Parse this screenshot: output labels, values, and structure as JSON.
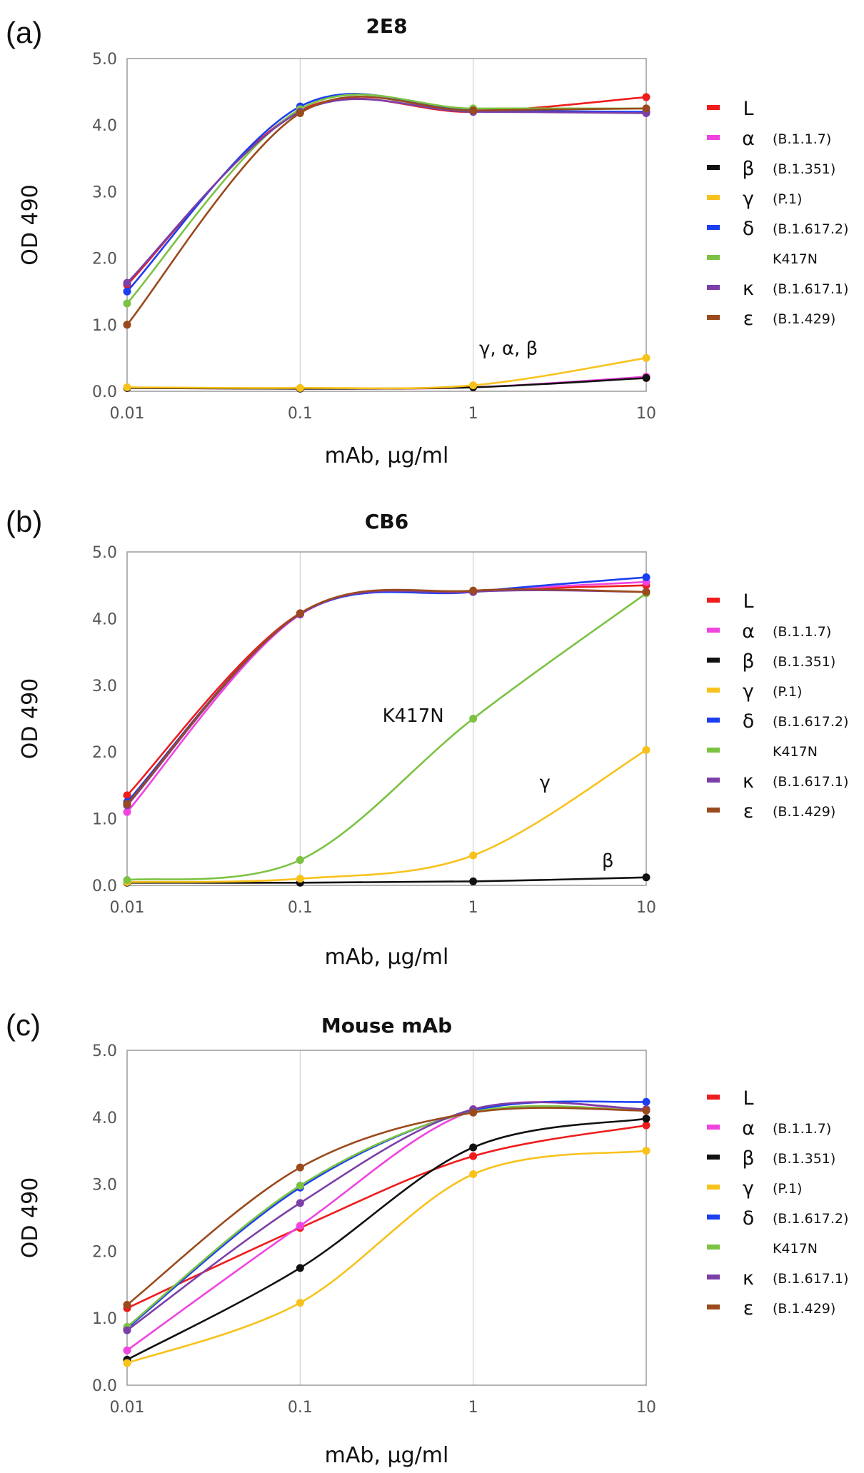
{
  "figure": {
    "charts": [
      {
        "panel_label": "(a)",
        "title": "2E8",
        "xlabel": "mAb, µg/ml",
        "ylabel": "OD 490",
        "annotations": [
          "γ, α, β"
        ]
      },
      {
        "panel_label": "(b)",
        "title": "CB6",
        "xlabel": "mAb, µg/ml",
        "ylabel": "OD 490",
        "annotations": [
          "K417N",
          "γ",
          "β"
        ]
      },
      {
        "panel_label": "(c)",
        "title": "Mouse mAb",
        "xlabel": "mAb, µg/ml",
        "ylabel": "OD 490",
        "annotations": []
      }
    ]
  },
  "chart_data": [
    {
      "type": "line",
      "title": "2E8",
      "xlabel": "mAb, µg/ml",
      "ylabel": "OD 490",
      "xscale": "log",
      "x": [
        0.01,
        0.1,
        1,
        10
      ],
      "xticks": [
        "0.01",
        "0.1",
        "1",
        "10"
      ],
      "yticks": [
        "0.0",
        "1.0",
        "2.0",
        "3.0",
        "4.0",
        "5.0"
      ],
      "ylim": [
        0,
        5
      ],
      "grid": "vertical",
      "legend_position": "right",
      "series": [
        {
          "name": "L",
          "strain": "",
          "color": "#ee1c1c",
          "values": [
            1.6,
            4.22,
            4.2,
            4.42
          ]
        },
        {
          "name": "α",
          "strain": "(B.1.1.7)",
          "color": "#f044e0",
          "values": [
            0.05,
            0.04,
            0.06,
            0.22
          ]
        },
        {
          "name": "β",
          "strain": "(B.1.351)",
          "color": "#111111",
          "values": [
            0.05,
            0.04,
            0.06,
            0.2
          ]
        },
        {
          "name": "γ",
          "strain": "(P.1)",
          "color": "#f8c21c",
          "values": [
            0.06,
            0.05,
            0.09,
            0.5
          ]
        },
        {
          "name": "δ",
          "strain": "(B.1.617.2)",
          "color": "#1c3ef0",
          "values": [
            1.5,
            4.28,
            4.22,
            4.2
          ]
        },
        {
          "name": "",
          "strain": "K417N",
          "color": "#7cc243",
          "values": [
            1.32,
            4.24,
            4.25,
            4.25
          ]
        },
        {
          "name": "κ",
          "strain": "(B.1.617.1)",
          "color": "#7b3fa8",
          "values": [
            1.63,
            4.2,
            4.2,
            4.18
          ]
        },
        {
          "name": "ε",
          "strain": "(B.1.429)",
          "color": "#9a4a1c",
          "values": [
            1.0,
            4.18,
            4.22,
            4.25
          ]
        }
      ],
      "annotations": [
        {
          "text": "γ, α, β",
          "x": 1.6,
          "y": 0.55
        }
      ]
    },
    {
      "type": "line",
      "title": "CB6",
      "xlabel": "mAb, µg/ml",
      "ylabel": "OD 490",
      "xscale": "log",
      "x": [
        0.01,
        0.1,
        1,
        10
      ],
      "xticks": [
        "0.01",
        "0.1",
        "1",
        "10"
      ],
      "yticks": [
        "0.0",
        "1.0",
        "2.0",
        "3.0",
        "4.0",
        "5.0"
      ],
      "ylim": [
        0,
        5
      ],
      "grid": "vertical",
      "legend_position": "right",
      "series": [
        {
          "name": "L",
          "strain": "",
          "color": "#ee1c1c",
          "values": [
            1.35,
            4.08,
            4.4,
            4.5
          ]
        },
        {
          "name": "α",
          "strain": "(B.1.1.7)",
          "color": "#f044e0",
          "values": [
            1.1,
            4.06,
            4.4,
            4.55
          ]
        },
        {
          "name": "β",
          "strain": "(B.1.351)",
          "color": "#111111",
          "values": [
            0.04,
            0.04,
            0.06,
            0.12
          ]
        },
        {
          "name": "γ",
          "strain": "(P.1)",
          "color": "#f8c21c",
          "values": [
            0.05,
            0.1,
            0.45,
            2.03
          ]
        },
        {
          "name": "δ",
          "strain": "(B.1.617.2)",
          "color": "#1c3ef0",
          "values": [
            1.25,
            4.07,
            4.4,
            4.62
          ]
        },
        {
          "name": "",
          "strain": "K417N",
          "color": "#7cc243",
          "values": [
            0.08,
            0.38,
            2.5,
            4.38
          ]
        },
        {
          "name": "κ",
          "strain": "(B.1.617.1)",
          "color": "#7b3fa8",
          "values": [
            1.2,
            4.07,
            4.4,
            4.4
          ]
        },
        {
          "name": "ε",
          "strain": "(B.1.429)",
          "color": "#9a4a1c",
          "values": [
            1.22,
            4.08,
            4.42,
            4.4
          ]
        }
      ],
      "annotations": [
        {
          "text": "K417N",
          "x": 0.45,
          "y": 2.45
        },
        {
          "text": "γ",
          "x": 2.6,
          "y": 1.45
        },
        {
          "text": "β",
          "x": 6.0,
          "y": 0.28
        }
      ]
    },
    {
      "type": "line",
      "title": "Mouse mAb",
      "xlabel": "mAb, µg/ml",
      "ylabel": "OD 490",
      "xscale": "log",
      "x": [
        0.01,
        0.1,
        1,
        10
      ],
      "xticks": [
        "0.01",
        "0.1",
        "1",
        "10"
      ],
      "yticks": [
        "0.0",
        "1.0",
        "2.0",
        "3.0",
        "4.0",
        "5.0"
      ],
      "ylim": [
        0,
        5
      ],
      "grid": "vertical",
      "legend_position": "right",
      "series": [
        {
          "name": "L",
          "strain": "",
          "color": "#ee1c1c",
          "values": [
            1.15,
            2.35,
            3.42,
            3.88
          ]
        },
        {
          "name": "α",
          "strain": "(B.1.1.7)",
          "color": "#f044e0",
          "values": [
            0.52,
            2.38,
            4.1,
            4.1
          ]
        },
        {
          "name": "β",
          "strain": "(B.1.351)",
          "color": "#111111",
          "values": [
            0.38,
            1.75,
            3.55,
            3.98
          ]
        },
        {
          "name": "γ",
          "strain": "(P.1)",
          "color": "#f8c21c",
          "values": [
            0.33,
            1.23,
            3.15,
            3.5
          ]
        },
        {
          "name": "δ",
          "strain": "(B.1.617.2)",
          "color": "#1c3ef0",
          "values": [
            0.85,
            2.95,
            4.1,
            4.23
          ]
        },
        {
          "name": "",
          "strain": "K417N",
          "color": "#7cc243",
          "values": [
            0.87,
            2.98,
            4.08,
            4.1
          ]
        },
        {
          "name": "κ",
          "strain": "(B.1.617.1)",
          "color": "#7b3fa8",
          "values": [
            0.82,
            2.72,
            4.12,
            4.12
          ]
        },
        {
          "name": "ε",
          "strain": "(B.1.429)",
          "color": "#9a4a1c",
          "values": [
            1.2,
            3.25,
            4.07,
            4.1
          ]
        }
      ],
      "annotations": []
    }
  ]
}
